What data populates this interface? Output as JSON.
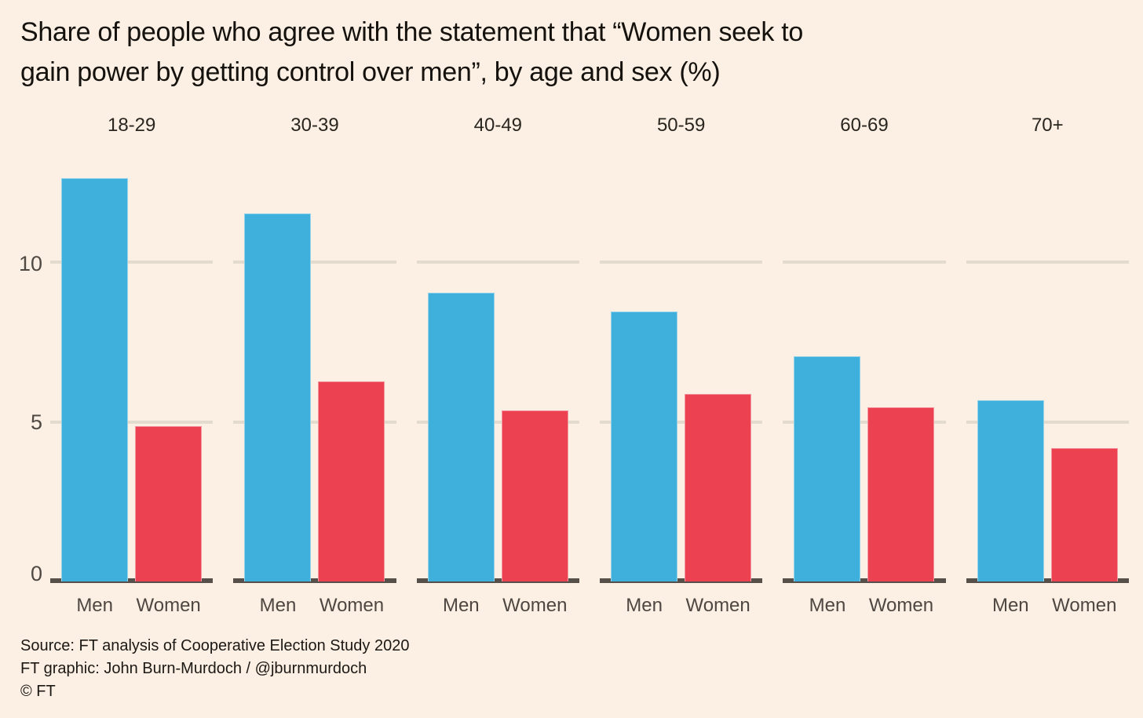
{
  "title_lines": [
    "Share of people who agree with the statement that “Women seek to",
    "gain power by getting control over men”, by age and sex (%)"
  ],
  "colors": {
    "men_bar": "#3EB0DB",
    "women_bar": "#EB4150",
    "background": "#FCF0E4",
    "gridline": "#E4DBCF",
    "baseline": "#57504A"
  },
  "chart_data": {
    "type": "bar",
    "title": "Share of people who agree with the statement that “Women seek to gain power by getting control over men”, by age and sex (%)",
    "categories": [
      "18-29",
      "30-39",
      "40-49",
      "50-59",
      "60-69",
      "70+"
    ],
    "series": [
      {
        "name": "Men",
        "color": "#3EB0DB",
        "values": [
          12.7,
          11.6,
          9.1,
          8.5,
          7.1,
          5.7
        ]
      },
      {
        "name": "Women",
        "color": "#EB4150",
        "values": [
          4.9,
          6.3,
          5.4,
          5.9,
          5.5,
          4.2
        ]
      }
    ],
    "bar_group_labels": [
      "Men",
      "Women"
    ],
    "xlabel": "",
    "ylabel": "",
    "ylim": [
      0,
      13
    ],
    "yticks": [
      "0",
      "5",
      "10"
    ],
    "grid": true,
    "legend_position": "none"
  },
  "y_axis": {
    "tick_0": "0",
    "tick_5": "5",
    "tick_10": "10"
  },
  "footer": {
    "source": "Source: FT analysis of Cooperative Election Study 2020",
    "credit": "FT graphic: John Burn-Murdoch / @jburnmurdoch",
    "copyright": "© FT"
  }
}
